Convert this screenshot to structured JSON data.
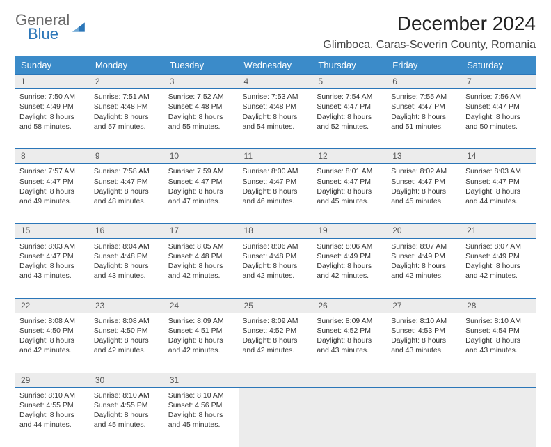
{
  "brand": {
    "word1": "General",
    "word2": "Blue"
  },
  "title": "December 2024",
  "location": "Glimboca, Caras-Severin County, Romania",
  "colors": {
    "header_bg": "#3b8bc9",
    "rule": "#2b76b8",
    "daynum_bg": "#ececec",
    "text": "#333333",
    "brand_gray": "#6a6a6a",
    "brand_blue": "#2b76b8"
  },
  "day_headers": [
    "Sunday",
    "Monday",
    "Tuesday",
    "Wednesday",
    "Thursday",
    "Friday",
    "Saturday"
  ],
  "weeks": [
    {
      "nums": [
        "1",
        "2",
        "3",
        "4",
        "5",
        "6",
        "7"
      ],
      "cells": [
        {
          "sr": "7:50 AM",
          "ss": "4:49 PM",
          "dl": "8 hours and 58 minutes."
        },
        {
          "sr": "7:51 AM",
          "ss": "4:48 PM",
          "dl": "8 hours and 57 minutes."
        },
        {
          "sr": "7:52 AM",
          "ss": "4:48 PM",
          "dl": "8 hours and 55 minutes."
        },
        {
          "sr": "7:53 AM",
          "ss": "4:48 PM",
          "dl": "8 hours and 54 minutes."
        },
        {
          "sr": "7:54 AM",
          "ss": "4:47 PM",
          "dl": "8 hours and 52 minutes."
        },
        {
          "sr": "7:55 AM",
          "ss": "4:47 PM",
          "dl": "8 hours and 51 minutes."
        },
        {
          "sr": "7:56 AM",
          "ss": "4:47 PM",
          "dl": "8 hours and 50 minutes."
        }
      ]
    },
    {
      "nums": [
        "8",
        "9",
        "10",
        "11",
        "12",
        "13",
        "14"
      ],
      "cells": [
        {
          "sr": "7:57 AM",
          "ss": "4:47 PM",
          "dl": "8 hours and 49 minutes."
        },
        {
          "sr": "7:58 AM",
          "ss": "4:47 PM",
          "dl": "8 hours and 48 minutes."
        },
        {
          "sr": "7:59 AM",
          "ss": "4:47 PM",
          "dl": "8 hours and 47 minutes."
        },
        {
          "sr": "8:00 AM",
          "ss": "4:47 PM",
          "dl": "8 hours and 46 minutes."
        },
        {
          "sr": "8:01 AM",
          "ss": "4:47 PM",
          "dl": "8 hours and 45 minutes."
        },
        {
          "sr": "8:02 AM",
          "ss": "4:47 PM",
          "dl": "8 hours and 45 minutes."
        },
        {
          "sr": "8:03 AM",
          "ss": "4:47 PM",
          "dl": "8 hours and 44 minutes."
        }
      ]
    },
    {
      "nums": [
        "15",
        "16",
        "17",
        "18",
        "19",
        "20",
        "21"
      ],
      "cells": [
        {
          "sr": "8:03 AM",
          "ss": "4:47 PM",
          "dl": "8 hours and 43 minutes."
        },
        {
          "sr": "8:04 AM",
          "ss": "4:48 PM",
          "dl": "8 hours and 43 minutes."
        },
        {
          "sr": "8:05 AM",
          "ss": "4:48 PM",
          "dl": "8 hours and 42 minutes."
        },
        {
          "sr": "8:06 AM",
          "ss": "4:48 PM",
          "dl": "8 hours and 42 minutes."
        },
        {
          "sr": "8:06 AM",
          "ss": "4:49 PM",
          "dl": "8 hours and 42 minutes."
        },
        {
          "sr": "8:07 AM",
          "ss": "4:49 PM",
          "dl": "8 hours and 42 minutes."
        },
        {
          "sr": "8:07 AM",
          "ss": "4:49 PM",
          "dl": "8 hours and 42 minutes."
        }
      ]
    },
    {
      "nums": [
        "22",
        "23",
        "24",
        "25",
        "26",
        "27",
        "28"
      ],
      "cells": [
        {
          "sr": "8:08 AM",
          "ss": "4:50 PM",
          "dl": "8 hours and 42 minutes."
        },
        {
          "sr": "8:08 AM",
          "ss": "4:50 PM",
          "dl": "8 hours and 42 minutes."
        },
        {
          "sr": "8:09 AM",
          "ss": "4:51 PM",
          "dl": "8 hours and 42 minutes."
        },
        {
          "sr": "8:09 AM",
          "ss": "4:52 PM",
          "dl": "8 hours and 42 minutes."
        },
        {
          "sr": "8:09 AM",
          "ss": "4:52 PM",
          "dl": "8 hours and 43 minutes."
        },
        {
          "sr": "8:10 AM",
          "ss": "4:53 PM",
          "dl": "8 hours and 43 minutes."
        },
        {
          "sr": "8:10 AM",
          "ss": "4:54 PM",
          "dl": "8 hours and 43 minutes."
        }
      ]
    },
    {
      "nums": [
        "29",
        "30",
        "31",
        "",
        "",
        "",
        ""
      ],
      "cells": [
        {
          "sr": "8:10 AM",
          "ss": "4:55 PM",
          "dl": "8 hours and 44 minutes."
        },
        {
          "sr": "8:10 AM",
          "ss": "4:55 PM",
          "dl": "8 hours and 45 minutes."
        },
        {
          "sr": "8:10 AM",
          "ss": "4:56 PM",
          "dl": "8 hours and 45 minutes."
        },
        null,
        null,
        null,
        null
      ]
    }
  ],
  "labels": {
    "sunrise": "Sunrise:",
    "sunset": "Sunset:",
    "daylight": "Daylight:"
  }
}
